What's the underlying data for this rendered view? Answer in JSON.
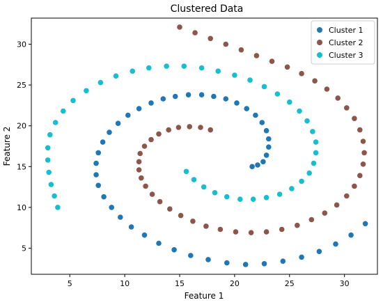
{
  "chart_data": {
    "type": "scatter",
    "title": "Clustered Data",
    "xlabel": "Feature 1",
    "ylabel": "Feature 2",
    "xlim": [
      1.5,
      33
    ],
    "ylim": [
      1.8,
      33.2
    ],
    "xticks": [
      5,
      10,
      15,
      20,
      25,
      30
    ],
    "yticks": [
      5,
      10,
      15,
      20,
      25,
      30
    ],
    "grid": false,
    "legend_position": "upper right",
    "series": [
      {
        "name": "Cluster 1",
        "color": "#1f77b4",
        "points": [
          [
            21.6,
            15.0
          ],
          [
            22.1,
            15.2
          ],
          [
            22.6,
            15.6
          ],
          [
            22.9,
            16.4
          ],
          [
            23.1,
            17.4
          ],
          [
            23.1,
            18.4
          ],
          [
            22.9,
            19.4
          ],
          [
            22.5,
            20.4
          ],
          [
            21.9,
            21.3
          ],
          [
            21.1,
            22.1
          ],
          [
            20.2,
            22.8
          ],
          [
            19.2,
            23.3
          ],
          [
            18.1,
            23.6
          ],
          [
            17.0,
            23.8
          ],
          [
            15.8,
            23.8
          ],
          [
            14.6,
            23.6
          ],
          [
            13.5,
            23.3
          ],
          [
            12.4,
            22.8
          ],
          [
            11.3,
            22.1
          ],
          [
            10.3,
            21.3
          ],
          [
            9.4,
            20.3
          ],
          [
            8.6,
            19.2
          ],
          [
            8.0,
            18.0
          ],
          [
            7.6,
            16.7
          ],
          [
            7.4,
            15.4
          ],
          [
            7.4,
            14.0
          ],
          [
            7.6,
            12.7
          ],
          [
            8.1,
            11.3
          ],
          [
            8.8,
            10.0
          ],
          [
            9.6,
            8.8
          ],
          [
            10.6,
            7.6
          ],
          [
            11.8,
            6.6
          ],
          [
            13.1,
            5.6
          ],
          [
            14.5,
            4.8
          ],
          [
            16.0,
            4.1
          ],
          [
            17.6,
            3.6
          ],
          [
            19.3,
            3.2
          ],
          [
            21.0,
            3.0
          ],
          [
            22.7,
            3.1
          ],
          [
            24.4,
            3.4
          ],
          [
            26.1,
            3.9
          ],
          [
            27.7,
            4.6
          ],
          [
            29.2,
            5.5
          ],
          [
            30.6,
            6.6
          ],
          [
            31.9,
            8.0
          ]
        ]
      },
      {
        "name": "Cluster 2",
        "color": "#8c564b",
        "points": [
          [
            17.8,
            19.5
          ],
          [
            16.9,
            19.8
          ],
          [
            15.9,
            19.9
          ],
          [
            14.9,
            19.8
          ],
          [
            14.0,
            19.5
          ],
          [
            13.1,
            19.0
          ],
          [
            12.4,
            18.3
          ],
          [
            11.8,
            17.5
          ],
          [
            11.4,
            16.6
          ],
          [
            11.3,
            15.6
          ],
          [
            11.3,
            14.6
          ],
          [
            11.5,
            13.6
          ],
          [
            11.9,
            12.6
          ],
          [
            12.5,
            11.6
          ],
          [
            13.2,
            10.7
          ],
          [
            14.1,
            9.8
          ],
          [
            15.1,
            9.0
          ],
          [
            16.2,
            8.3
          ],
          [
            17.4,
            7.7
          ],
          [
            18.7,
            7.3
          ],
          [
            20.1,
            7.0
          ],
          [
            21.5,
            6.9
          ],
          [
            22.9,
            7.0
          ],
          [
            24.3,
            7.3
          ],
          [
            25.7,
            7.8
          ],
          [
            27.0,
            8.5
          ],
          [
            28.2,
            9.3
          ],
          [
            29.3,
            10.3
          ],
          [
            30.2,
            11.4
          ],
          [
            30.9,
            12.6
          ],
          [
            31.4,
            13.9
          ],
          [
            31.7,
            15.3
          ],
          [
            31.8,
            16.7
          ],
          [
            31.7,
            18.1
          ],
          [
            31.4,
            19.5
          ],
          [
            30.9,
            20.9
          ],
          [
            30.2,
            22.2
          ],
          [
            29.4,
            23.4
          ],
          [
            28.4,
            24.5
          ],
          [
            27.3,
            25.5
          ],
          [
            26.1,
            26.4
          ],
          [
            24.8,
            27.2
          ],
          [
            23.4,
            27.9
          ],
          [
            22.0,
            28.6
          ],
          [
            20.6,
            29.3
          ],
          [
            19.2,
            30.0
          ],
          [
            17.8,
            30.7
          ],
          [
            16.4,
            31.4
          ],
          [
            15.0,
            32.1
          ]
        ]
      },
      {
        "name": "Cluster 3",
        "color": "#17becf",
        "points": [
          [
            15.6,
            14.4
          ],
          [
            16.3,
            13.4
          ],
          [
            17.2,
            12.5
          ],
          [
            18.2,
            11.8
          ],
          [
            19.3,
            11.3
          ],
          [
            20.5,
            11.0
          ],
          [
            21.7,
            11.0
          ],
          [
            22.9,
            11.2
          ],
          [
            24.1,
            11.6
          ],
          [
            25.2,
            12.3
          ],
          [
            26.1,
            13.2
          ],
          [
            26.8,
            14.2
          ],
          [
            27.2,
            15.4
          ],
          [
            27.4,
            16.7
          ],
          [
            27.4,
            18.0
          ],
          [
            27.1,
            19.3
          ],
          [
            26.6,
            20.6
          ],
          [
            25.9,
            21.8
          ],
          [
            25.0,
            22.9
          ],
          [
            23.9,
            23.9
          ],
          [
            22.7,
            24.8
          ],
          [
            21.4,
            25.6
          ],
          [
            20.0,
            26.2
          ],
          [
            18.5,
            26.7
          ],
          [
            17.0,
            27.1
          ],
          [
            15.4,
            27.3
          ],
          [
            13.8,
            27.3
          ],
          [
            12.2,
            27.1
          ],
          [
            10.7,
            26.7
          ],
          [
            9.2,
            26.1
          ],
          [
            7.8,
            25.3
          ],
          [
            6.5,
            24.3
          ],
          [
            5.3,
            23.1
          ],
          [
            4.4,
            21.8
          ],
          [
            3.7,
            20.4
          ],
          [
            3.2,
            18.9
          ],
          [
            3.0,
            17.3
          ],
          [
            3.0,
            15.8
          ],
          [
            3.1,
            14.3
          ],
          [
            3.3,
            12.8
          ],
          [
            3.6,
            11.4
          ],
          [
            3.9,
            10.0
          ]
        ]
      }
    ]
  }
}
